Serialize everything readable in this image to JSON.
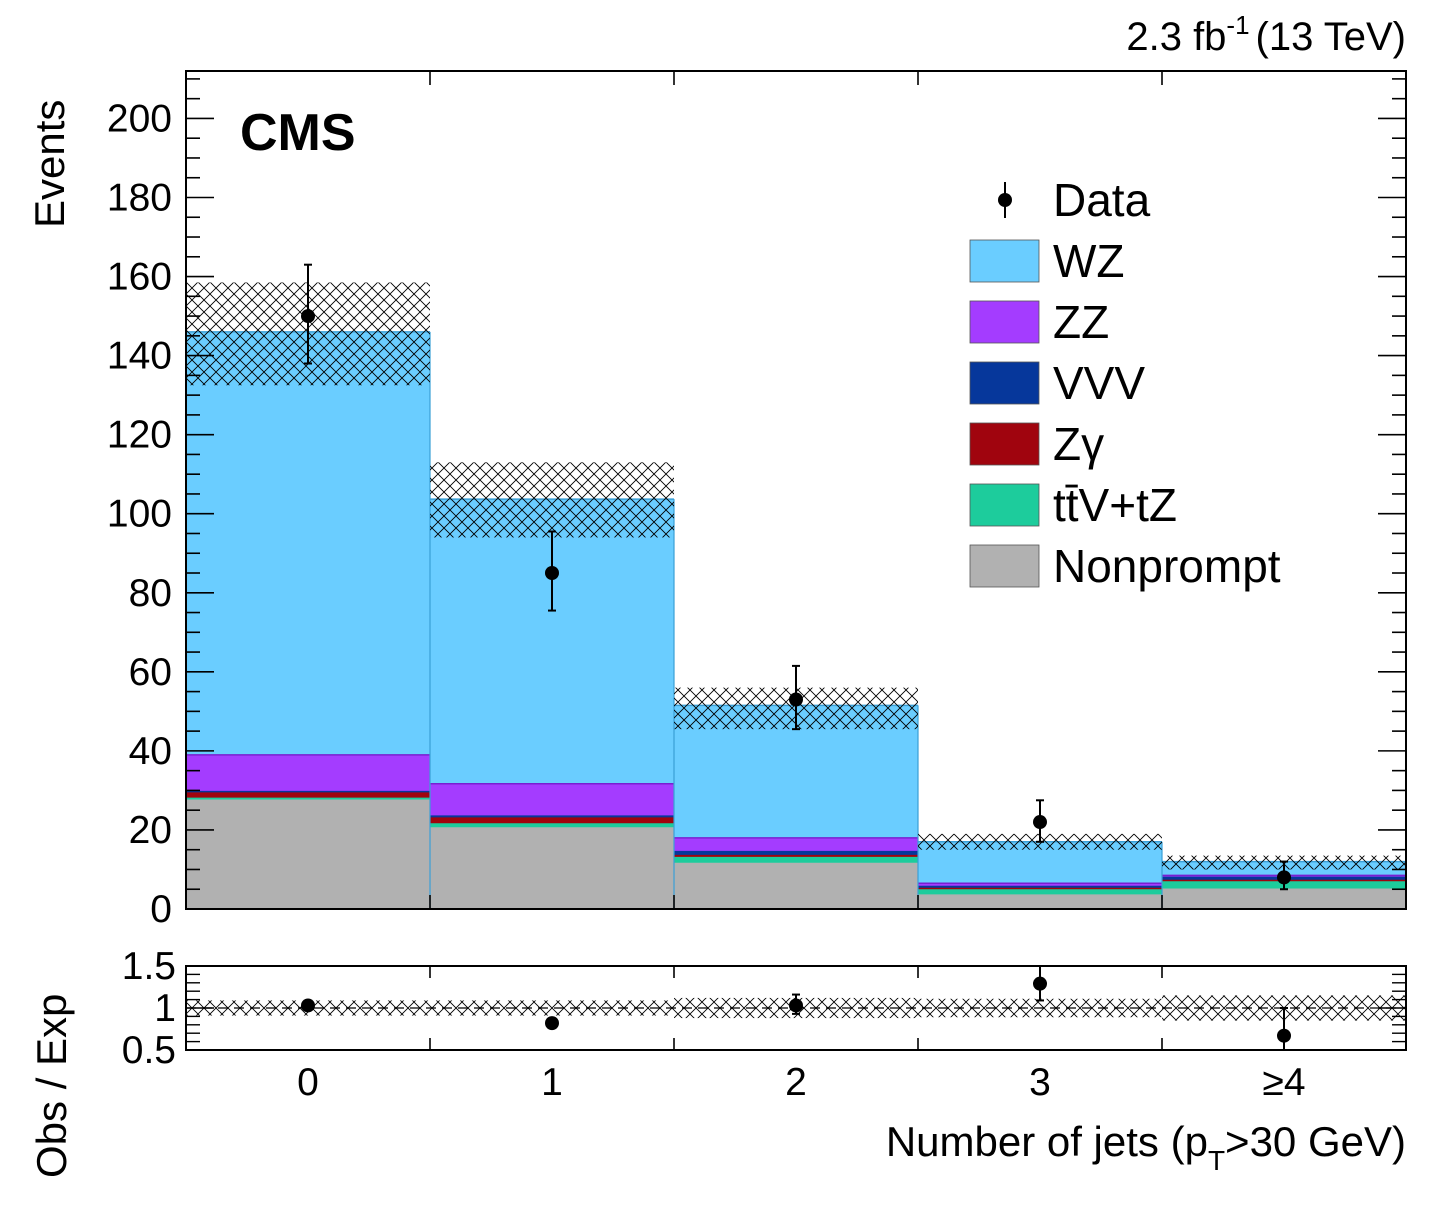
{
  "header": {
    "experiment": "CMS",
    "lumi_value": "2.3 fb",
    "lumi_exp": "-1",
    "energy": "(13 TeV)"
  },
  "colors": {
    "wz": "#6acdff",
    "zz": "#a43cff",
    "vvv": "#06379b",
    "zgamma": "#a0040e",
    "ttv_tz": "#1dcc9c",
    "nonprompt": "#b1b1b1",
    "data": "#000000"
  },
  "chart_data": [
    {
      "type": "bar",
      "stacked": true,
      "categories": [
        "0",
        "1",
        "2",
        "3",
        "≥4"
      ],
      "ylabel": "Events",
      "xlabel": "",
      "ylim": [
        0,
        212
      ],
      "yticks": [
        "0",
        "20",
        "40",
        "60",
        "80",
        "100",
        "120",
        "140",
        "160",
        "180",
        "200"
      ],
      "series": [
        {
          "name": "Nonprompt",
          "color_key": "nonprompt",
          "values": [
            27.5,
            20.5,
            11.5,
            3.5,
            5.0
          ]
        },
        {
          "name": "ttV+tZ",
          "color_key": "ttv_tz",
          "values": [
            0.5,
            1.0,
            1.5,
            1.5,
            2.0
          ]
        },
        {
          "name": "Zγ",
          "color_key": "zgamma",
          "values": [
            1.5,
            1.5,
            0.5,
            0.2,
            0.2
          ]
        },
        {
          "name": "VVV",
          "color_key": "vvv",
          "values": [
            0.2,
            0.5,
            1.0,
            0.5,
            0.8
          ]
        },
        {
          "name": "ZZ",
          "color_key": "zz",
          "values": [
            9.3,
            8.2,
            3.5,
            0.8,
            0.5
          ]
        },
        {
          "name": "WZ",
          "color_key": "wz",
          "values": [
            107.0,
            72.0,
            33.5,
            10.5,
            3.5
          ]
        }
      ],
      "total": [
        146,
        103.7,
        51.5,
        17,
        12
      ],
      "uncertainty_band": {
        "low": [
          132.5,
          94,
          45.5,
          15,
          10
        ],
        "high": [
          158.5,
          113,
          56,
          19,
          13.5
        ]
      },
      "data": {
        "name": "Data",
        "values": [
          150,
          85,
          53,
          22,
          8
        ],
        "err_low": [
          12,
          9.5,
          7.5,
          5,
          3
        ],
        "err_high": [
          13,
          10.5,
          8.5,
          5.5,
          4
        ]
      },
      "legend": {
        "placement": "top-right",
        "entries": [
          {
            "label": "Data",
            "kind": "marker"
          },
          {
            "label": "WZ",
            "color_key": "wz"
          },
          {
            "label": "ZZ",
            "color_key": "zz"
          },
          {
            "label": "VVV",
            "color_key": "vvv"
          },
          {
            "label": "Zγ",
            "color_key": "zgamma"
          },
          {
            "label": "tt̄V+tZ",
            "color_key": "ttv_tz"
          },
          {
            "label": "Nonprompt",
            "color_key": "nonprompt"
          }
        ]
      }
    },
    {
      "type": "scatter",
      "categories": [
        "0",
        "1",
        "2",
        "3",
        "≥4"
      ],
      "ylabel": "Obs / Exp",
      "xlabel_main": "Number of jets (p",
      "xlabel_sub": "T",
      "xlabel_tail": ">30 GeV)",
      "ylim": [
        0.5,
        1.5
      ],
      "yticks": [
        "0.5",
        "1",
        "1.5"
      ],
      "ratio": {
        "values": [
          1.03,
          0.82,
          1.03,
          1.29,
          0.67
        ],
        "err_low": [
          0.03,
          0.04,
          0.1,
          0.2,
          0.2
        ],
        "err_high": [
          0.03,
          0.05,
          0.13,
          0.22,
          0.33
        ]
      },
      "band": {
        "low": [
          0.91,
          0.91,
          0.88,
          0.89,
          0.85
        ],
        "high": [
          1.09,
          1.09,
          1.12,
          1.11,
          1.15
        ]
      }
    }
  ]
}
